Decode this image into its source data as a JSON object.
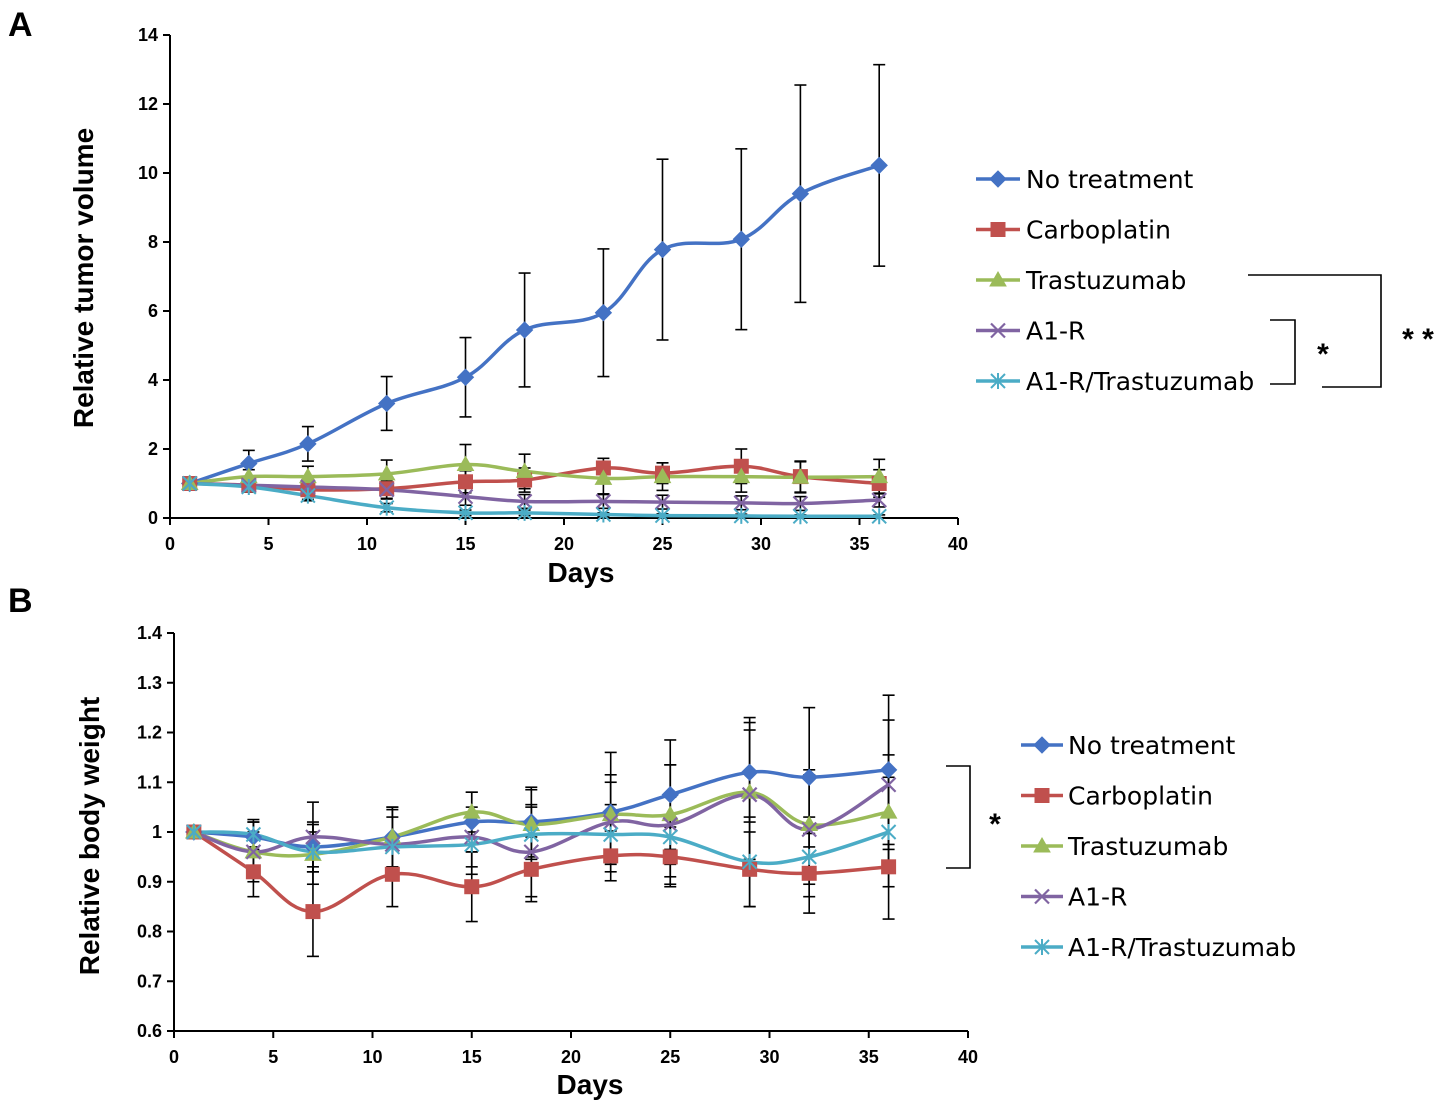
{
  "chart_data": [
    {
      "panel_label": "A",
      "type": "line",
      "xlabel": "Days",
      "ylabel": "Relative tumor volume",
      "xlim": [
        0,
        40
      ],
      "ylim": [
        0,
        14
      ],
      "x_ticks": [
        "0",
        "5",
        "10",
        "15",
        "20",
        "25",
        "30",
        "35",
        "40"
      ],
      "y_ticks": [
        "0",
        "2",
        "4",
        "6",
        "8",
        "10",
        "12",
        "14"
      ],
      "grid": false,
      "legend_position": "right",
      "x": [
        1,
        4,
        7,
        11,
        15,
        18,
        22,
        25,
        29,
        32,
        36
      ],
      "series": [
        {
          "name": "No treatment",
          "color": "#4472C4",
          "marker": "diamond",
          "values": [
            1.0,
            1.58,
            2.15,
            3.32,
            4.08,
            5.45,
            5.95,
            7.78,
            8.08,
            9.4,
            10.22
          ],
          "errors": [
            0,
            0.38,
            0.5,
            0.78,
            1.15,
            1.65,
            1.85,
            2.62,
            2.62,
            3.15,
            2.92
          ]
        },
        {
          "name": "Carboplatin",
          "color": "#C0504D",
          "marker": "square",
          "values": [
            1.0,
            0.95,
            0.82,
            0.85,
            1.05,
            1.1,
            1.45,
            1.3,
            1.5,
            1.2,
            1.0
          ],
          "errors": [
            0,
            0.2,
            0.28,
            0.3,
            0.32,
            0.35,
            0.28,
            0.3,
            0.5,
            0.45,
            0.4
          ]
        },
        {
          "name": "Trastuzumab",
          "color": "#9BBB59",
          "marker": "triangle",
          "values": [
            1.0,
            1.2,
            1.2,
            1.28,
            1.55,
            1.35,
            1.15,
            1.2,
            1.2,
            1.18,
            1.2
          ],
          "errors": [
            0,
            0.2,
            0.3,
            0.4,
            0.58,
            0.5,
            0.45,
            0.4,
            0.45,
            0.45,
            0.5
          ]
        },
        {
          "name": "A1-R",
          "color": "#8064A2",
          "marker": "x",
          "values": [
            1.0,
            0.95,
            0.9,
            0.82,
            0.62,
            0.48,
            0.48,
            0.46,
            0.44,
            0.42,
            0.52
          ],
          "errors": [
            0,
            0.15,
            0.2,
            0.25,
            0.25,
            0.2,
            0.2,
            0.2,
            0.2,
            0.2,
            0.2
          ]
        },
        {
          "name": "A1-R/Trastuzumab",
          "color": "#4BACC6",
          "marker": "star",
          "values": [
            1.0,
            0.9,
            0.65,
            0.3,
            0.15,
            0.15,
            0.1,
            0.07,
            0.06,
            0.05,
            0.05
          ],
          "errors": [
            0,
            0.1,
            0.15,
            0.12,
            0.08,
            0.08,
            0.05,
            0.05,
            0.05,
            0.04,
            0.04
          ]
        }
      ],
      "significance": [
        {
          "label": "*"
        },
        {
          "label": "* *"
        }
      ]
    },
    {
      "panel_label": "B",
      "type": "line",
      "xlabel": "Days",
      "ylabel": "Relative body weight",
      "xlim": [
        0,
        40
      ],
      "ylim": [
        0.6,
        1.4
      ],
      "x_ticks": [
        "0",
        "5",
        "10",
        "15",
        "20",
        "25",
        "30",
        "35",
        "40"
      ],
      "y_ticks": [
        "0.6",
        "0.7",
        "0.8",
        "0.9",
        "1",
        "1.1",
        "1.2",
        "1.3",
        "1.4"
      ],
      "grid": false,
      "legend_position": "right",
      "x": [
        1,
        4,
        7,
        11,
        15,
        18,
        22,
        25,
        29,
        32,
        36
      ],
      "series": [
        {
          "name": "No treatment",
          "color": "#4472C4",
          "marker": "diamond",
          "values": [
            1.0,
            0.99,
            0.97,
            0.99,
            1.02,
            1.02,
            1.04,
            1.075,
            1.12,
            1.11,
            1.125
          ],
          "errors": [
            0,
            0.03,
            0.05,
            0.06,
            0.06,
            0.07,
            0.12,
            0.11,
            0.1,
            0.14,
            0.15
          ]
        },
        {
          "name": "Carboplatin",
          "color": "#C0504D",
          "marker": "square",
          "values": [
            1.0,
            0.92,
            0.84,
            0.915,
            0.89,
            0.925,
            0.952,
            0.95,
            0.925,
            0.917,
            0.93
          ],
          "errors": [
            0,
            0.05,
            0.09,
            0.065,
            0.07,
            0.065,
            0.05,
            0.06,
            0.075,
            0.08,
            0.105
          ]
        },
        {
          "name": "Trastuzumab",
          "color": "#9BBB59",
          "marker": "triangle",
          "values": [
            1.0,
            0.96,
            0.955,
            0.99,
            1.04,
            1.015,
            1.035,
            1.035,
            1.08,
            1.015,
            1.04
          ],
          "errors": [
            0,
            0.04,
            0.06,
            0.06,
            0.04,
            0.07,
            0.08,
            0.1,
            0.15,
            0.11,
            0.115
          ]
        },
        {
          "name": "A1-R",
          "color": "#8064A2",
          "marker": "x",
          "values": [
            1.0,
            0.96,
            0.99,
            0.975,
            0.99,
            0.96,
            1.02,
            1.015,
            1.075,
            1.005,
            1.095
          ],
          "errors": [
            0,
            0.06,
            0.07,
            0.07,
            0.06,
            0.09,
            0.08,
            0.12,
            0.13,
            0.11,
            0.13
          ]
        },
        {
          "name": "A1-R/Trastuzumab",
          "color": "#4BACC6",
          "marker": "star",
          "values": [
            1.0,
            0.995,
            0.96,
            0.97,
            0.975,
            0.995,
            0.995,
            0.99,
            0.94,
            0.95,
            1.0
          ],
          "errors": [
            0,
            0.03,
            0.04,
            0.06,
            0.06,
            0.06,
            0.06,
            0.08,
            0.09,
            0.08,
            0.11
          ]
        }
      ],
      "significance": [
        {
          "label": "*"
        }
      ]
    }
  ]
}
